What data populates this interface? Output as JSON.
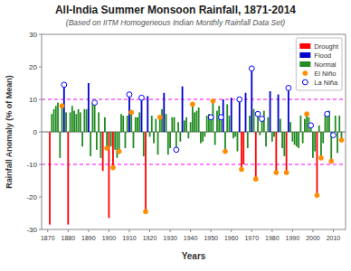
{
  "chart_data": {
    "type": "bar",
    "title": "All-India Summer Monsoon Rainfall, 1871-2014",
    "subtitle": "(Based on IITM Homogeneous Indian Monthly Rainfall Data Set)",
    "xlabel": "Years",
    "ylabel": "Rainfall Anomaly (% of Mean)",
    "x": [
      1871,
      1872,
      1873,
      1874,
      1875,
      1876,
      1877,
      1878,
      1879,
      1880,
      1881,
      1882,
      1883,
      1884,
      1885,
      1886,
      1887,
      1888,
      1889,
      1890,
      1891,
      1892,
      1893,
      1894,
      1895,
      1896,
      1897,
      1898,
      1899,
      1900,
      1901,
      1902,
      1903,
      1904,
      1905,
      1906,
      1907,
      1908,
      1909,
      1910,
      1911,
      1912,
      1913,
      1914,
      1915,
      1916,
      1917,
      1918,
      1919,
      1920,
      1921,
      1922,
      1923,
      1924,
      1925,
      1926,
      1927,
      1928,
      1929,
      1930,
      1931,
      1932,
      1933,
      1934,
      1935,
      1936,
      1937,
      1938,
      1939,
      1940,
      1941,
      1942,
      1943,
      1944,
      1945,
      1946,
      1947,
      1948,
      1949,
      1950,
      1951,
      1952,
      1953,
      1954,
      1955,
      1956,
      1957,
      1958,
      1959,
      1960,
      1961,
      1962,
      1963,
      1964,
      1965,
      1966,
      1967,
      1968,
      1969,
      1970,
      1971,
      1972,
      1973,
      1974,
      1975,
      1976,
      1977,
      1978,
      1979,
      1980,
      1981,
      1982,
      1983,
      1984,
      1985,
      1986,
      1987,
      1988,
      1989,
      1990,
      1991,
      1992,
      1993,
      1994,
      1995,
      1996,
      1997,
      1998,
      1999,
      2000,
      2001,
      2002,
      2003,
      2004,
      2005,
      2006,
      2007,
      2008,
      2009,
      2010,
      2011,
      2012,
      2013,
      2014
    ],
    "xlim": [
      1867,
      2016
    ],
    "xticks": [
      1870,
      1880,
      1890,
      1900,
      1910,
      1920,
      1930,
      1940,
      1950,
      1960,
      1970,
      1980,
      1990,
      2000,
      2010
    ],
    "ylim": [
      -30,
      30
    ],
    "yticks": [
      -30,
      -20,
      -10,
      0,
      10,
      20,
      30
    ],
    "grid": false,
    "legend": "upper right",
    "reference_lines": [
      {
        "value": 10,
        "color": "#ff00ff",
        "line_style": "dashed"
      },
      {
        "value": -10,
        "color": "#ff00ff",
        "line_style": "dashed"
      }
    ],
    "series": [
      {
        "name": "Drought",
        "type": "bar",
        "color": "#ff0000",
        "values": [
          -28.5,
          null,
          null,
          null,
          null,
          null,
          null,
          null,
          null,
          -28.5,
          null,
          null,
          null,
          null,
          null,
          null,
          null,
          null,
          null,
          null,
          null,
          null,
          null,
          null,
          null,
          null,
          -12.0,
          null,
          null,
          -26.5,
          null,
          -11.0,
          null,
          null,
          null,
          null,
          null,
          null,
          null,
          null,
          null,
          null,
          null,
          null,
          null,
          null,
          null,
          -24.5,
          null,
          null,
          null,
          null,
          null,
          null,
          null,
          null,
          null,
          null,
          null,
          null,
          null,
          null,
          null,
          null,
          null,
          null,
          null,
          null,
          null,
          null,
          null,
          null,
          null,
          null,
          null,
          null,
          null,
          null,
          null,
          null,
          null,
          null,
          null,
          null,
          null,
          null,
          null,
          null,
          null,
          null,
          null,
          null,
          null,
          null,
          -11.5,
          -10.0,
          null,
          null,
          null,
          null,
          null,
          -14.5,
          null,
          null,
          null,
          null,
          null,
          null,
          null,
          null,
          null,
          -12.5,
          null,
          null,
          null,
          null,
          -12.5,
          null,
          null,
          null,
          null,
          null,
          null,
          null,
          null,
          null,
          null,
          null,
          null,
          null,
          null,
          -19.5,
          null,
          null,
          null,
          null,
          null,
          null,
          null,
          null,
          null,
          null,
          null,
          null
        ]
      },
      {
        "name": "Flood",
        "type": "bar",
        "color": "#0000cc",
        "values": [
          null,
          null,
          null,
          null,
          null,
          null,
          null,
          14.5,
          null,
          null,
          null,
          null,
          null,
          null,
          null,
          null,
          null,
          null,
          null,
          15.0,
          null,
          null,
          null,
          null,
          null,
          null,
          null,
          null,
          null,
          null,
          null,
          null,
          null,
          null,
          null,
          null,
          null,
          null,
          null,
          11.5,
          null,
          null,
          null,
          null,
          null,
          10.5,
          null,
          null,
          11.0,
          null,
          null,
          null,
          null,
          null,
          null,
          null,
          12.0,
          null,
          null,
          null,
          null,
          null,
          null,
          null,
          null,
          14.0,
          null,
          null,
          null,
          null,
          null,
          null,
          null,
          null,
          null,
          null,
          null,
          null,
          null,
          null,
          null,
          null,
          null,
          null,
          null,
          10.0,
          null,
          null,
          null,
          10.5,
          null,
          null,
          null,
          10.0,
          null,
          null,
          12.0,
          null,
          null,
          19.5,
          null,
          null,
          null,
          null,
          null,
          null,
          null,
          null,
          12.5,
          null,
          null,
          null,
          11.5,
          null,
          null,
          null,
          null,
          13.5,
          null,
          null,
          null,
          null,
          null,
          null,
          null,
          null,
          null,
          null,
          null,
          null,
          null,
          null,
          null,
          null,
          null,
          null,
          null,
          null,
          null,
          null,
          null,
          null,
          null,
          null
        ]
      },
      {
        "name": "Normal",
        "type": "bar",
        "color": "#228b22",
        "values": [
          null,
          5.5,
          7.0,
          8.0,
          9.0,
          -8.0,
          8.0,
          null,
          6.0,
          null,
          6.0,
          8.0,
          6.5,
          5.5,
          7.0,
          6.0,
          -4.5,
          7.0,
          7.0,
          null,
          -7.5,
          9.0,
          9.0,
          -5.5,
          6.0,
          -8.0,
          null,
          4.5,
          -5.0,
          null,
          -4.5,
          null,
          -5.5,
          -8.0,
          -6.0,
          5.5,
          5.0,
          -5.0,
          5.0,
          null,
          6.0,
          -5.0,
          4.5,
          4.5,
          6.0,
          null,
          -7.5,
          null,
          null,
          -1.5,
          5.0,
          -3.5,
          4.0,
          -7.0,
          4.5,
          7.0,
          null,
          5.5,
          -7.0,
          -5.0,
          4.5,
          4.5,
          -5.5,
          3.0,
          -3.0,
          null,
          3.5,
          4.5,
          -2.0,
          3.0,
          8.5,
          6.0,
          6.5,
          7.5,
          -3.5,
          -3.0,
          -1.5,
          5.0,
          5.5,
          4.5,
          9.5,
          -4.0,
          6.5,
          8.0,
          4.5,
          null,
          -6.0,
          8.5,
          5.0,
          null,
          -2.0,
          -1.5,
          -6.0,
          null,
          null,
          null,
          null,
          -5.0,
          5.0,
          null,
          7.0,
          null,
          5.5,
          -1.0,
          4.0,
          6.5,
          -4.5,
          4.5,
          null,
          -3.0,
          -1.5,
          null,
          null,
          4.0,
          -5.0,
          -7.5,
          null,
          null,
          3.0,
          -3.0,
          -4.0,
          -4.5,
          -5.0,
          5.0,
          -3.5,
          4.0,
          5.5,
          4.5,
          2.0,
          -8.0,
          -6.0,
          null,
          2.0,
          -8.0,
          -3.5,
          5.5,
          5.5,
          6.5,
          -9.0,
          -1.0,
          5.0,
          -6.5,
          5.0,
          -2.5
        ]
      },
      {
        "name": "El Niño",
        "type": "scatter",
        "marker": "circle",
        "color": "#ff8c00",
        "values": [
          null,
          null,
          null,
          null,
          null,
          null,
          8.0,
          null,
          null,
          null,
          null,
          null,
          null,
          null,
          null,
          null,
          null,
          null,
          null,
          null,
          null,
          null,
          null,
          null,
          null,
          null,
          null,
          null,
          -5.0,
          null,
          null,
          -11.0,
          null,
          null,
          -6.0,
          null,
          null,
          null,
          null,
          null,
          6.0,
          null,
          null,
          null,
          null,
          null,
          null,
          -24.5,
          null,
          null,
          null,
          null,
          null,
          null,
          4.5,
          null,
          null,
          null,
          null,
          null,
          null,
          null,
          null,
          null,
          null,
          null,
          null,
          null,
          null,
          null,
          8.5,
          null,
          null,
          null,
          null,
          null,
          null,
          null,
          null,
          null,
          9.5,
          null,
          null,
          null,
          null,
          null,
          -6.0,
          null,
          null,
          null,
          null,
          null,
          null,
          null,
          -11.5,
          null,
          null,
          null,
          null,
          null,
          null,
          -14.5,
          null,
          null,
          null,
          null,
          null,
          null,
          null,
          null,
          null,
          -12.5,
          null,
          null,
          null,
          null,
          -12.5,
          null,
          null,
          null,
          null,
          null,
          null,
          null,
          null,
          null,
          5.5,
          null,
          null,
          null,
          null,
          -19.5,
          null,
          -8.0,
          null,
          null,
          null,
          null,
          -9.0,
          null,
          null,
          null,
          null,
          -2.5
        ]
      },
      {
        "name": "La Niña",
        "type": "scatter",
        "marker": "open-circle",
        "color": "#0000ff",
        "values": [
          null,
          null,
          null,
          null,
          null,
          null,
          null,
          14.5,
          null,
          null,
          null,
          null,
          null,
          null,
          null,
          null,
          null,
          null,
          null,
          null,
          null,
          null,
          9.0,
          null,
          null,
          null,
          null,
          null,
          null,
          null,
          null,
          null,
          null,
          null,
          null,
          null,
          null,
          null,
          null,
          11.5,
          null,
          null,
          null,
          null,
          null,
          10.5,
          null,
          null,
          null,
          null,
          null,
          null,
          null,
          null,
          null,
          null,
          null,
          null,
          null,
          null,
          null,
          null,
          -5.5,
          null,
          null,
          null,
          null,
          null,
          null,
          null,
          null,
          null,
          null,
          null,
          null,
          null,
          null,
          null,
          null,
          4.5,
          null,
          null,
          null,
          null,
          4.5,
          null,
          null,
          null,
          null,
          null,
          null,
          null,
          null,
          10.0,
          null,
          null,
          null,
          null,
          null,
          19.5,
          null,
          null,
          5.5,
          null,
          4.0,
          null,
          null,
          null,
          null,
          null,
          null,
          null,
          null,
          null,
          null,
          null,
          null,
          13.5,
          null,
          null,
          null,
          null,
          null,
          null,
          null,
          null,
          null,
          null,
          2.0,
          null,
          null,
          null,
          null,
          null,
          null,
          null,
          5.5,
          null,
          null,
          -1.0,
          null,
          null,
          null,
          null
        ]
      }
    ]
  }
}
